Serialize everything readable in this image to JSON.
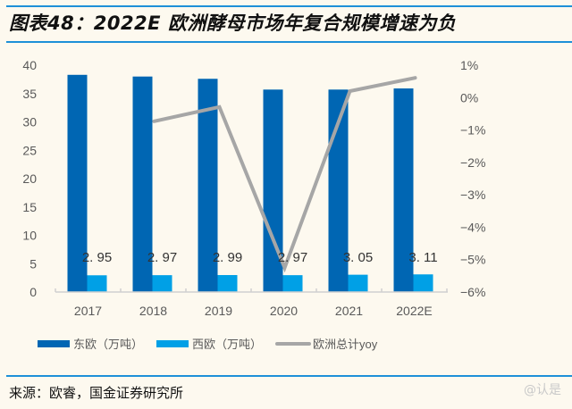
{
  "title": "图表48：2022E 欧洲酵母市场年复合规模增速为负",
  "source": "来源：欧睿，国金证券研究所",
  "watermark": "@认是",
  "colors": {
    "east_europe": "#0066b3",
    "west_europe": "#00a0e6",
    "yoy": "#a6a6a6",
    "rule": "#1e90d8",
    "background": "#fdf9ef"
  },
  "chart_data": {
    "type": "bar",
    "title": "2022E 欧洲酵母市场年复合规模增速为负",
    "categories": [
      "2017",
      "2018",
      "2019",
      "2020",
      "2021",
      "2022E"
    ],
    "series": [
      {
        "name": "东欧（万吨）",
        "type": "bar",
        "axis": "left",
        "values": [
          38.3,
          38.0,
          37.6,
          35.7,
          35.7,
          35.9
        ]
      },
      {
        "name": "西欧（万吨）",
        "type": "bar",
        "axis": "left",
        "values": [
          2.95,
          2.97,
          2.99,
          2.97,
          3.05,
          3.11
        ],
        "data_labels": [
          "2. 95",
          "2. 97",
          "2. 99",
          "2. 97",
          "3. 05",
          "3. 11"
        ]
      },
      {
        "name": "欧洲总计yoy",
        "type": "line",
        "axis": "right",
        "values": [
          null,
          -0.73,
          -0.29,
          -5.25,
          0.2,
          0.61
        ]
      }
    ],
    "left_axis": {
      "ylim": [
        0,
        40
      ],
      "ticks": [
        "0",
        "5",
        "10",
        "15",
        "20",
        "25",
        "30",
        "35",
        "40"
      ]
    },
    "right_axis": {
      "ylim": [
        -6,
        1
      ],
      "unit": "%",
      "ticks": [
        "−6%",
        "−5%",
        "−4%",
        "−3%",
        "−2%",
        "−1%",
        "0%",
        "1%"
      ]
    },
    "legend": {
      "position": "bottom",
      "entries": [
        "东欧（万吨）",
        "西欧（万吨）",
        "欧洲总计yoy"
      ]
    },
    "grid": false
  }
}
